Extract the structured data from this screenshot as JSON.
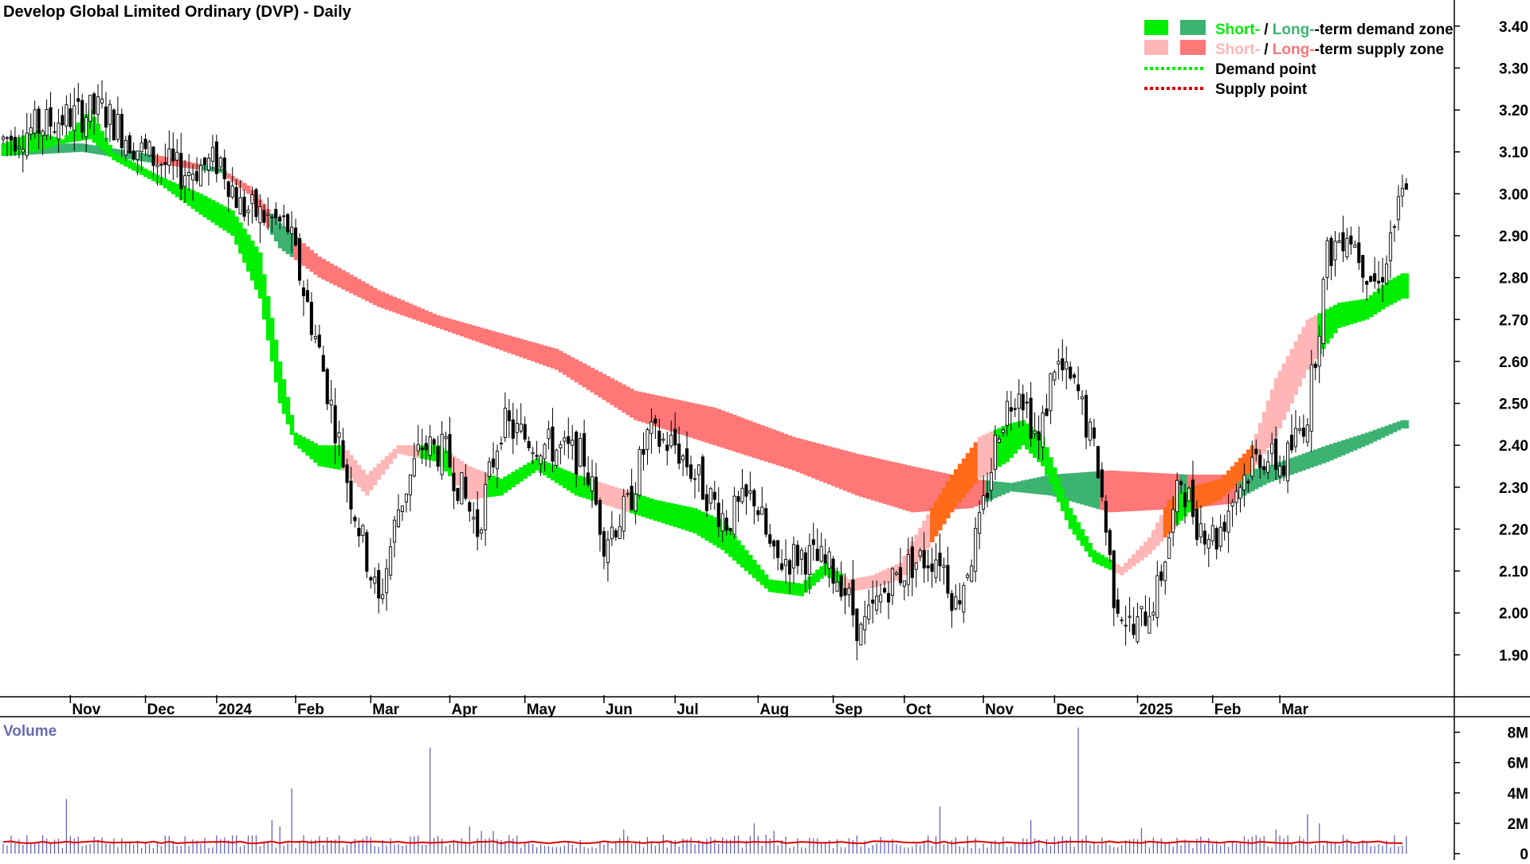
{
  "header": {
    "title": "Develop Global Limited Ordinary (DVP) - Daily"
  },
  "legend": {
    "placement": "top-right",
    "demand_zone": {
      "short": "Short-",
      "sep": " / ",
      "long": "Long-",
      "suffix": "-term demand zone"
    },
    "supply_zone": {
      "short": "Short-",
      "sep": " / ",
      "long": "Long-",
      "suffix": "-term supply zone"
    },
    "demand_point": "Demand point",
    "supply_point": "Supply point"
  },
  "colors": {
    "short_demand": "#00ee00",
    "long_demand": "#3cb371",
    "short_supply": "#ffb6b6",
    "long_supply": "#ff7777",
    "zone_overlap": "#ff6a1a",
    "demand_point": "#00ee00",
    "supply_point": "#dd0000",
    "volume_bar": "#6666bb",
    "volume_avg": "#dd0000",
    "volume_label": "#6a6ab0"
  },
  "chart_data": [
    {
      "type": "candlestick",
      "title": "Develop Global Limited Ordinary (DVP) - Daily",
      "price_ticks": [
        "3.40",
        "3.30",
        "3.20",
        "3.10",
        "3.00",
        "2.90",
        "2.80",
        "2.70",
        "2.60",
        "2.50",
        "2.40",
        "2.30",
        "2.20",
        "2.10",
        "2.00",
        "1.90"
      ],
      "ylim": [
        1.8,
        3.43
      ],
      "x_ticks": [
        "Nov",
        "Dec",
        "2024",
        "Feb",
        "Mar",
        "Apr",
        "May",
        "Jun",
        "Jul",
        "Aug",
        "Sep",
        "Oct",
        "Nov",
        "Dec",
        "2025",
        "Feb",
        "Mar"
      ],
      "price_path": [
        [
          0,
          3.13
        ],
        [
          15,
          3.18
        ],
        [
          25,
          3.2
        ],
        [
          35,
          3.1
        ],
        [
          45,
          3.05
        ],
        [
          55,
          3.08
        ],
        [
          60,
          2.97
        ],
        [
          72,
          2.92
        ],
        [
          80,
          2.62
        ],
        [
          88,
          2.28
        ],
        [
          95,
          2.02
        ],
        [
          100,
          2.25
        ],
        [
          106,
          2.4
        ],
        [
          112,
          2.38
        ],
        [
          120,
          2.2
        ],
        [
          126,
          2.45
        ],
        [
          132,
          2.42
        ],
        [
          140,
          2.39
        ],
        [
          147,
          2.37
        ],
        [
          152,
          2.18
        ],
        [
          158,
          2.25
        ],
        [
          163,
          2.42
        ],
        [
          170,
          2.4
        ],
        [
          177,
          2.3
        ],
        [
          183,
          2.22
        ],
        [
          190,
          2.28
        ],
        [
          195,
          2.12
        ],
        [
          202,
          2.14
        ],
        [
          207,
          2.12
        ],
        [
          212,
          2.08
        ],
        [
          217,
          1.95
        ],
        [
          224,
          2.07
        ],
        [
          230,
          2.12
        ],
        [
          237,
          2.14
        ],
        [
          241,
          2.02
        ],
        [
          247,
          2.2
        ],
        [
          252,
          2.45
        ],
        [
          257,
          2.55
        ],
        [
          262,
          2.4
        ],
        [
          266,
          2.6
        ],
        [
          272,
          2.52
        ],
        [
          277,
          2.35
        ],
        [
          281,
          2.05
        ],
        [
          286,
          1.95
        ],
        [
          292,
          2.05
        ],
        [
          298,
          2.32
        ],
        [
          302,
          2.22
        ],
        [
          307,
          2.18
        ],
        [
          312,
          2.3
        ],
        [
          318,
          2.38
        ],
        [
          324,
          2.35
        ],
        [
          330,
          2.48
        ],
        [
          335,
          2.85
        ],
        [
          340,
          2.92
        ],
        [
          345,
          2.82
        ],
        [
          348,
          2.78
        ],
        [
          351,
          2.9
        ],
        [
          354,
          2.99
        ]
      ],
      "short_zone": {
        "upper": [
          [
            0,
            3.12
          ],
          [
            8,
            3.15
          ],
          [
            15,
            3.13
          ],
          [
            22,
            3.2
          ],
          [
            28,
            3.1
          ],
          [
            40,
            3.04
          ],
          [
            50,
            3.0
          ],
          [
            58,
            2.96
          ],
          [
            65,
            2.86
          ],
          [
            70,
            2.6
          ],
          [
            74,
            2.43
          ],
          [
            80,
            2.4
          ],
          [
            86,
            2.4
          ],
          [
            92,
            2.33
          ],
          [
            100,
            2.4
          ],
          [
            110,
            2.4
          ],
          [
            118,
            2.35
          ],
          [
            126,
            2.32
          ],
          [
            135,
            2.37
          ],
          [
            145,
            2.33
          ],
          [
            155,
            2.3
          ],
          [
            165,
            2.27
          ],
          [
            175,
            2.25
          ],
          [
            182,
            2.22
          ],
          [
            188,
            2.15
          ],
          [
            194,
            2.08
          ],
          [
            202,
            2.07
          ],
          [
            208,
            2.12
          ],
          [
            214,
            2.08
          ],
          [
            220,
            2.09
          ],
          [
            227,
            2.12
          ],
          [
            233,
            2.22
          ],
          [
            240,
            2.33
          ],
          [
            247,
            2.42
          ],
          [
            254,
            2.45
          ],
          [
            258,
            2.46
          ],
          [
            263,
            2.42
          ],
          [
            270,
            2.25
          ],
          [
            276,
            2.15
          ],
          [
            283,
            2.11
          ],
          [
            290,
            2.18
          ],
          [
            295,
            2.27
          ],
          [
            300,
            2.3
          ],
          [
            308,
            2.32
          ],
          [
            316,
            2.4
          ],
          [
            322,
            2.56
          ],
          [
            330,
            2.7
          ],
          [
            338,
            2.74
          ],
          [
            345,
            2.75
          ],
          [
            350,
            2.79
          ],
          [
            354,
            2.81
          ]
        ],
        "lower": [
          [
            0,
            3.09
          ],
          [
            8,
            3.1
          ],
          [
            15,
            3.12
          ],
          [
            22,
            3.13
          ],
          [
            28,
            3.08
          ],
          [
            40,
            3.02
          ],
          [
            50,
            2.95
          ],
          [
            58,
            2.9
          ],
          [
            65,
            2.75
          ],
          [
            70,
            2.5
          ],
          [
            74,
            2.4
          ],
          [
            80,
            2.35
          ],
          [
            86,
            2.34
          ],
          [
            92,
            2.28
          ],
          [
            100,
            2.38
          ],
          [
            110,
            2.36
          ],
          [
            118,
            2.27
          ],
          [
            126,
            2.28
          ],
          [
            135,
            2.34
          ],
          [
            145,
            2.28
          ],
          [
            155,
            2.25
          ],
          [
            165,
            2.22
          ],
          [
            175,
            2.19
          ],
          [
            182,
            2.15
          ],
          [
            188,
            2.1
          ],
          [
            194,
            2.05
          ],
          [
            202,
            2.04
          ],
          [
            208,
            2.09
          ],
          [
            214,
            2.05
          ],
          [
            220,
            2.06
          ],
          [
            227,
            2.08
          ],
          [
            233,
            2.14
          ],
          [
            240,
            2.24
          ],
          [
            247,
            2.32
          ],
          [
            254,
            2.36
          ],
          [
            258,
            2.4
          ],
          [
            263,
            2.35
          ],
          [
            270,
            2.2
          ],
          [
            276,
            2.12
          ],
          [
            283,
            2.09
          ],
          [
            290,
            2.14
          ],
          [
            295,
            2.19
          ],
          [
            300,
            2.24
          ],
          [
            308,
            2.27
          ],
          [
            316,
            2.34
          ],
          [
            322,
            2.42
          ],
          [
            330,
            2.58
          ],
          [
            338,
            2.68
          ],
          [
            345,
            2.7
          ],
          [
            350,
            2.73
          ],
          [
            354,
            2.75
          ]
        ]
      },
      "long_zone": {
        "upper": [
          [
            0,
            3.12
          ],
          [
            20,
            3.12
          ],
          [
            40,
            3.09
          ],
          [
            55,
            3.06
          ],
          [
            62,
            3.02
          ],
          [
            70,
            2.93
          ],
          [
            80,
            2.85
          ],
          [
            95,
            2.77
          ],
          [
            110,
            2.71
          ],
          [
            140,
            2.63
          ],
          [
            160,
            2.53
          ],
          [
            180,
            2.49
          ],
          [
            200,
            2.42
          ],
          [
            216,
            2.38
          ],
          [
            230,
            2.35
          ],
          [
            245,
            2.32
          ],
          [
            255,
            2.31
          ],
          [
            265,
            2.33
          ],
          [
            280,
            2.34
          ],
          [
            300,
            2.33
          ],
          [
            310,
            2.33
          ],
          [
            320,
            2.35
          ],
          [
            335,
            2.4
          ],
          [
            345,
            2.43
          ],
          [
            354,
            2.46
          ]
        ],
        "lower": [
          [
            0,
            3.09
          ],
          [
            20,
            3.1
          ],
          [
            40,
            3.07
          ],
          [
            55,
            3.05
          ],
          [
            62,
            3.0
          ],
          [
            70,
            2.87
          ],
          [
            80,
            2.8
          ],
          [
            95,
            2.73
          ],
          [
            110,
            2.68
          ],
          [
            140,
            2.58
          ],
          [
            160,
            2.46
          ],
          [
            180,
            2.4
          ],
          [
            200,
            2.34
          ],
          [
            216,
            2.28
          ],
          [
            230,
            2.24
          ],
          [
            245,
            2.25
          ],
          [
            255,
            2.29
          ],
          [
            265,
            2.28
          ],
          [
            280,
            2.24
          ],
          [
            300,
            2.25
          ],
          [
            310,
            2.26
          ],
          [
            320,
            2.31
          ],
          [
            335,
            2.36
          ],
          [
            345,
            2.4
          ],
          [
            354,
            2.44
          ]
        ]
      }
    },
    {
      "type": "bar",
      "title": "Volume",
      "ylabel": "Volume",
      "y_ticks": [
        "8M",
        "6M",
        "4M",
        "2M",
        "0"
      ],
      "ylim": [
        0,
        8.5
      ],
      "spikes": [
        [
          16,
          3.6
        ],
        [
          68,
          2.2
        ],
        [
          70,
          1.8
        ],
        [
          73,
          4.3
        ],
        [
          108,
          7.0
        ],
        [
          118,
          1.8
        ],
        [
          121,
          1.5
        ],
        [
          124,
          1.5
        ],
        [
          157,
          1.6
        ],
        [
          190,
          2.0
        ],
        [
          195,
          1.5
        ],
        [
          237,
          3.1
        ],
        [
          260,
          2.2
        ],
        [
          272,
          8.3
        ],
        [
          288,
          1.7
        ],
        [
          322,
          1.6
        ],
        [
          330,
          2.6
        ],
        [
          333,
          2.0
        ]
      ],
      "avg_level": 0.75
    }
  ]
}
